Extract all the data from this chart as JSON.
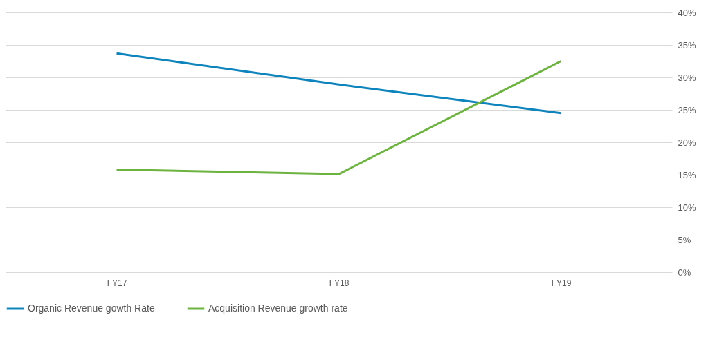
{
  "chart_data": {
    "type": "line",
    "categories": [
      "FY17",
      "FY18",
      "FY19"
    ],
    "series": [
      {
        "name": "Organic Revenue gowth Rate",
        "color": "#0e84bd",
        "values": [
          33.7,
          28.9,
          24.5
        ]
      },
      {
        "name": "Acquisition Revenue growth rate",
        "color": "#6db33f",
        "values": [
          15.8,
          15.1,
          32.5
        ]
      }
    ],
    "ylim": [
      0,
      40
    ],
    "yticks": [
      {
        "value": 0,
        "label": "0%"
      },
      {
        "value": 5,
        "label": "5%"
      },
      {
        "value": 10,
        "label": "10%"
      },
      {
        "value": 15,
        "label": "15%"
      },
      {
        "value": 20,
        "label": "20%"
      },
      {
        "value": 25,
        "label": "25%"
      },
      {
        "value": 30,
        "label": "30%"
      },
      {
        "value": 35,
        "label": "35%"
      },
      {
        "value": 40,
        "label": "40%"
      }
    ],
    "grid": "y",
    "legend": "bottom",
    "marker": "none",
    "line_style": "solid"
  }
}
